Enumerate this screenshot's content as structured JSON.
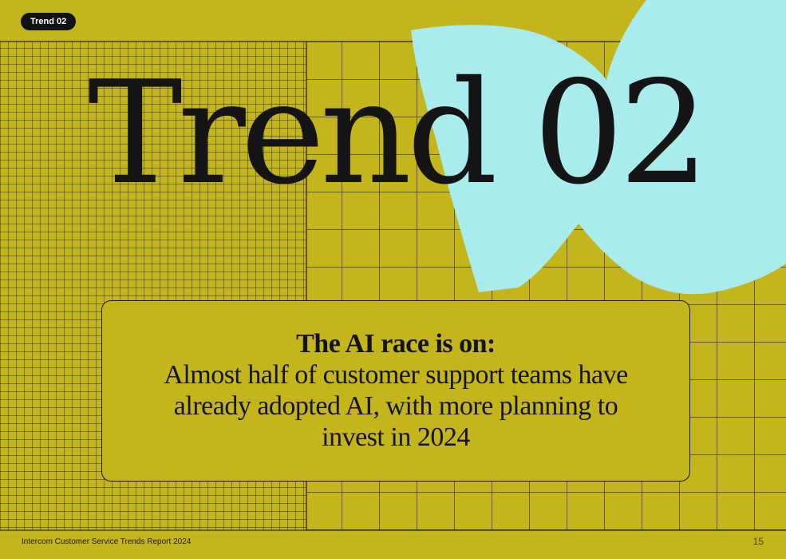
{
  "tag": {
    "label": "Trend 02"
  },
  "title": "Trend 02",
  "callout": {
    "heading": "The AI race is on:",
    "body": "Almost half of customer support teams have already adopted AI, with more planning to invest in 2024"
  },
  "footer": {
    "report_name": "Intercom Customer Service Trends Report 2024",
    "page_number": "15"
  },
  "colors": {
    "background": "#c4b51c",
    "accent_shape": "#a8ecee",
    "ink": "#141414"
  }
}
